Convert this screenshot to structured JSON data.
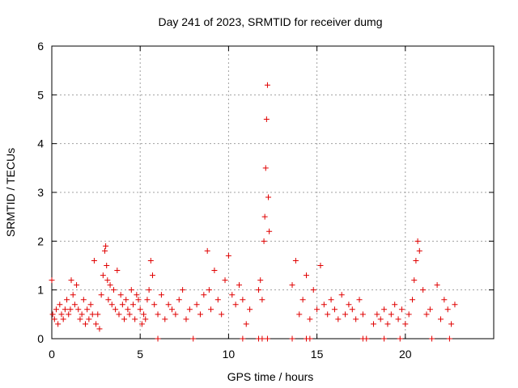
{
  "chart_data": {
    "type": "scatter",
    "title": "Day 241 of 2023, SRMTID for receiver dumg",
    "xlabel": "GPS time / hours",
    "ylabel": "SRMTID / TECUs",
    "xlim": [
      0,
      25
    ],
    "ylim": [
      0,
      6
    ],
    "xticks": [
      0,
      5,
      10,
      15,
      20
    ],
    "yticks": [
      0,
      1,
      2,
      3,
      4,
      5,
      6
    ],
    "grid": true,
    "marker": "+",
    "color": "#e00000",
    "series": [
      {
        "name": "SRMTID",
        "x": [
          0.0,
          0.05,
          0.15,
          0.25,
          0.35,
          0.45,
          0.55,
          0.65,
          0.75,
          0.85,
          0.95,
          1.05,
          1.1,
          1.2,
          1.3,
          1.4,
          1.5,
          1.6,
          1.7,
          1.8,
          1.9,
          2.0,
          2.1,
          2.2,
          2.3,
          2.4,
          2.5,
          2.6,
          2.7,
          2.8,
          2.9,
          3.0,
          3.05,
          3.1,
          3.15,
          3.2,
          3.3,
          3.4,
          3.5,
          3.6,
          3.7,
          3.8,
          3.9,
          4.0,
          4.1,
          4.2,
          4.3,
          4.4,
          4.5,
          4.6,
          4.7,
          4.8,
          4.9,
          5.0,
          5.1,
          5.2,
          5.3,
          5.4,
          5.5,
          5.6,
          5.7,
          5.8,
          6.0,
          6.2,
          6.4,
          6.6,
          6.8,
          7.0,
          7.2,
          7.4,
          7.6,
          7.8,
          8.2,
          8.4,
          8.6,
          8.8,
          8.9,
          9.0,
          9.2,
          9.4,
          9.6,
          9.8,
          10.0,
          10.2,
          10.4,
          10.6,
          10.8,
          11.0,
          11.2,
          11.7,
          11.8,
          11.9,
          12.0,
          12.05,
          12.1,
          12.15,
          12.2,
          12.25,
          12.3,
          13.6,
          13.8,
          14.0,
          14.2,
          14.4,
          14.6,
          14.8,
          15.0,
          15.2,
          15.4,
          15.6,
          15.8,
          16.0,
          16.2,
          16.4,
          16.6,
          16.8,
          17.0,
          17.2,
          17.4,
          17.6,
          18.2,
          18.4,
          18.6,
          18.8,
          19.0,
          19.2,
          19.4,
          19.6,
          19.8,
          20.0,
          20.2,
          20.4,
          20.5,
          20.6,
          20.7,
          20.8,
          21.0,
          21.2,
          21.4,
          21.8,
          22.0,
          22.2,
          22.4,
          22.6,
          22.8
        ],
        "y": [
          1.2,
          0.5,
          0.4,
          0.6,
          0.3,
          0.7,
          0.5,
          0.4,
          0.6,
          0.8,
          0.5,
          0.6,
          1.2,
          0.9,
          0.7,
          1.1,
          0.6,
          0.4,
          0.5,
          0.8,
          0.3,
          0.6,
          0.4,
          0.7,
          0.5,
          1.6,
          0.3,
          0.5,
          0.2,
          0.9,
          1.3,
          1.8,
          1.9,
          1.5,
          1.2,
          0.8,
          1.1,
          0.7,
          1.0,
          0.6,
          1.4,
          0.5,
          0.9,
          0.7,
          0.4,
          0.8,
          0.6,
          0.5,
          1.0,
          0.7,
          0.4,
          0.9,
          0.8,
          0.6,
          0.3,
          0.5,
          0.4,
          0.8,
          1.0,
          1.6,
          1.3,
          0.7,
          0.5,
          0.9,
          0.4,
          0.7,
          0.6,
          0.5,
          0.8,
          1.0,
          0.4,
          0.6,
          0.7,
          0.5,
          0.9,
          1.8,
          1.0,
          0.6,
          1.4,
          0.8,
          0.5,
          1.2,
          1.7,
          0.9,
          0.7,
          1.1,
          0.8,
          0.3,
          0.6,
          1.0,
          1.2,
          0.8,
          2.0,
          2.5,
          3.5,
          4.5,
          5.2,
          2.9,
          2.2,
          1.1,
          1.6,
          0.5,
          0.8,
          1.3,
          0.4,
          1.0,
          0.6,
          1.5,
          0.7,
          0.5,
          0.8,
          0.6,
          0.4,
          0.9,
          0.5,
          0.7,
          0.6,
          0.4,
          0.8,
          0.5,
          0.3,
          0.5,
          0.4,
          0.6,
          0.3,
          0.5,
          0.7,
          0.4,
          0.6,
          0.3,
          0.5,
          0.8,
          1.2,
          1.6,
          2.0,
          1.8,
          1.0,
          0.5,
          0.6,
          1.1,
          0.4,
          0.8,
          0.6,
          0.3,
          0.7
        ],
        "zero_x": [
          6.0,
          8.0,
          10.8,
          11.7,
          11.9,
          12.2,
          13.6,
          14.4,
          14.6,
          17.6,
          17.8,
          18.8,
          19.7,
          21.5,
          22.5
        ]
      }
    ]
  }
}
